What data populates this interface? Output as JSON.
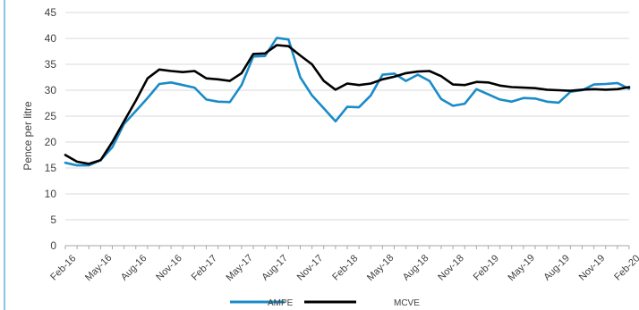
{
  "chart_data": {
    "type": "line",
    "title": "",
    "xlabel": "",
    "ylabel": "Pence per litre",
    "ylim": [
      0,
      45
    ],
    "yticks": [
      0,
      5,
      10,
      15,
      20,
      25,
      30,
      35,
      40,
      45
    ],
    "grid": "horizontal",
    "legend": "bottom-center",
    "x_tick_labels": [
      "Feb-16",
      "May-16",
      "Aug-16",
      "Nov-16",
      "Feb-17",
      "May-17",
      "Aug-17",
      "Nov-17",
      "Feb-18",
      "May-18",
      "Aug-18",
      "Nov-18",
      "Feb-19",
      "May-19",
      "Aug-19",
      "Nov-19",
      "Feb-20"
    ],
    "x": [
      "Feb-16",
      "Mar-16",
      "Apr-16",
      "May-16",
      "Jun-16",
      "Jul-16",
      "Aug-16",
      "Sep-16",
      "Oct-16",
      "Nov-16",
      "Dec-16",
      "Jan-17",
      "Feb-17",
      "Mar-17",
      "Apr-17",
      "May-17",
      "Jun-17",
      "Jul-17",
      "Aug-17",
      "Sep-17",
      "Oct-17",
      "Nov-17",
      "Dec-17",
      "Jan-18",
      "Feb-18",
      "Mar-18",
      "Apr-18",
      "May-18",
      "Jun-18",
      "Jul-18",
      "Aug-18",
      "Sep-18",
      "Oct-18",
      "Nov-18",
      "Dec-18",
      "Jan-19",
      "Feb-19",
      "Mar-19",
      "Apr-19",
      "May-19",
      "Jun-19",
      "Jul-19",
      "Aug-19",
      "Sep-19",
      "Oct-19",
      "Nov-19",
      "Dec-19",
      "Jan-20",
      "Feb-20"
    ],
    "series": [
      {
        "name": "AMPE",
        "color": "#1A8BC8",
        "values": [
          16.0,
          15.5,
          15.5,
          16.5,
          19.0,
          23.5,
          26.0,
          28.5,
          31.2,
          31.5,
          31.0,
          30.5,
          28.2,
          27.8,
          27.7,
          31.0,
          36.5,
          36.6,
          40.1,
          39.8,
          32.5,
          29.0,
          26.5,
          24.0,
          26.8,
          26.7,
          29.0,
          33.0,
          33.2,
          31.8,
          33.0,
          31.8,
          28.3,
          27.0,
          27.4,
          30.2,
          29.2,
          28.2,
          27.8,
          28.5,
          28.4,
          27.8,
          27.6,
          29.7,
          30.0,
          31.1,
          31.2,
          31.4,
          30.3
        ]
      },
      {
        "name": "MCVE",
        "color": "#000000",
        "values": [
          17.5,
          16.2,
          15.8,
          16.5,
          20.0,
          24.0,
          28.0,
          32.3,
          34.0,
          33.7,
          33.5,
          33.7,
          32.3,
          32.1,
          31.8,
          33.3,
          37.0,
          37.1,
          38.7,
          38.5,
          36.7,
          35.0,
          31.8,
          30.1,
          31.3,
          31.0,
          31.3,
          32.1,
          32.6,
          33.3,
          33.6,
          33.7,
          32.7,
          31.1,
          31.0,
          31.6,
          31.5,
          30.9,
          30.6,
          30.5,
          30.4,
          30.1,
          30.0,
          29.9,
          30.1,
          30.2,
          30.1,
          30.2,
          30.6
        ]
      }
    ]
  }
}
